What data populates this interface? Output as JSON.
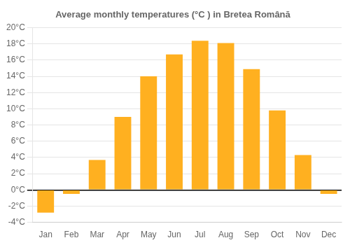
{
  "chart_data": {
    "type": "bar",
    "title": "Average monthly temperatures (°C ) in Bretea Română",
    "categories": [
      "Jan",
      "Feb",
      "Mar",
      "Apr",
      "May",
      "Jun",
      "Jul",
      "Aug",
      "Sep",
      "Oct",
      "Nov",
      "Dec"
    ],
    "values": [
      -2.8,
      -0.5,
      3.7,
      9.0,
      14.0,
      16.7,
      18.4,
      18.1,
      14.9,
      9.8,
      4.3,
      -0.5
    ],
    "color": "#FFB020",
    "ylim": [
      -4,
      20
    ],
    "yticks": [
      {
        "value": -4,
        "label": "-4°C"
      },
      {
        "value": -2,
        "label": "-2°C"
      },
      {
        "value": 0,
        "label": "0°C"
      },
      {
        "value": 2,
        "label": "2°C"
      },
      {
        "value": 4,
        "label": "4°C"
      },
      {
        "value": 6,
        "label": "6°C"
      },
      {
        "value": 8,
        "label": "8°C"
      },
      {
        "value": 10,
        "label": "10°C"
      },
      {
        "value": 12,
        "label": "12°C"
      },
      {
        "value": 14,
        "label": "14°C"
      },
      {
        "value": 16,
        "label": "16°C"
      },
      {
        "value": 18,
        "label": "18°C"
      },
      {
        "value": 20,
        "label": "20°C"
      }
    ],
    "grid": true
  }
}
